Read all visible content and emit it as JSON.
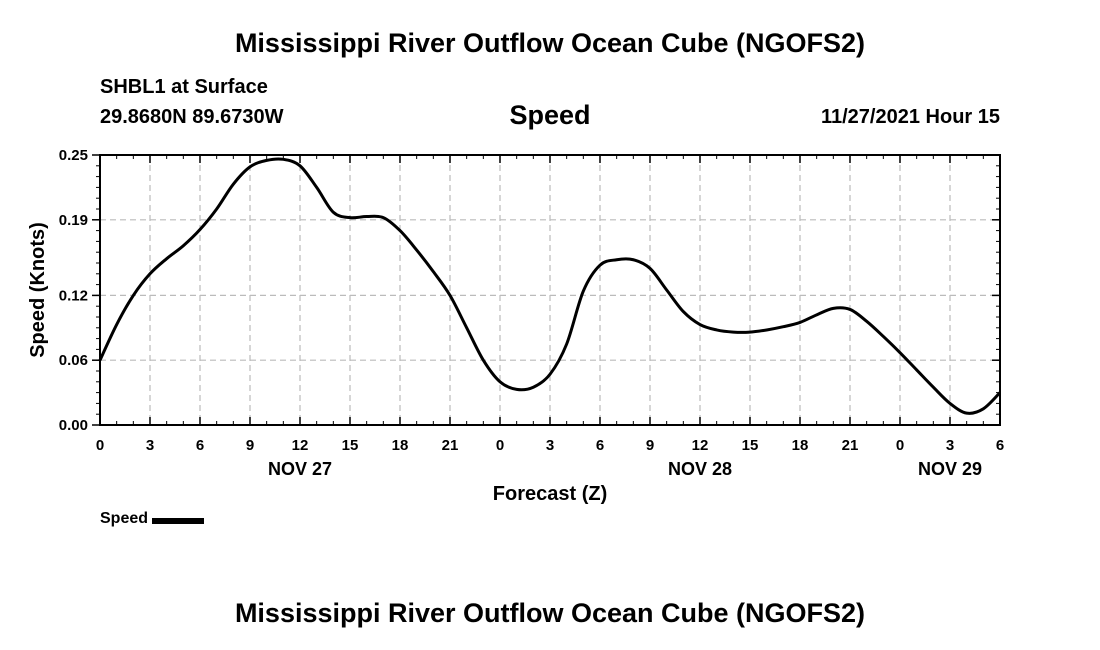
{
  "header": {
    "title": "Mississippi River Outflow Ocean Cube (NGOFS2)",
    "station": "SHBL1 at Surface",
    "coords": "29.8680N  89.6730W",
    "chart_title": "Speed",
    "valid_time": "11/27/2021 Hour 15"
  },
  "footer": {
    "title": "Mississippi River Outflow Ocean Cube (NGOFS2)"
  },
  "legend": {
    "label": "Speed"
  },
  "colors": {
    "line": "#000000",
    "grid": "#bbbbbb"
  },
  "chart_data": {
    "type": "line",
    "title": "Speed",
    "xlabel": "Forecast (Z)",
    "ylabel": "Speed (Knots)",
    "xlim": [
      0,
      54
    ],
    "ylim": [
      0,
      0.25
    ],
    "yticks": [
      0.0,
      0.06,
      0.12,
      0.19,
      0.25
    ],
    "ytick_labels": [
      "0.00",
      "0.06",
      "0.12",
      "0.19",
      "0.25"
    ],
    "xticks": [
      0,
      3,
      6,
      9,
      12,
      15,
      18,
      21,
      24,
      27,
      30,
      33,
      36,
      39,
      42,
      45,
      48,
      51,
      54
    ],
    "xtick_labels": [
      "0",
      "3",
      "6",
      "9",
      "12",
      "15",
      "18",
      "21",
      "0",
      "3",
      "6",
      "9",
      "12",
      "15",
      "18",
      "21",
      "0",
      "3",
      "6"
    ],
    "date_labels": [
      {
        "x": 12,
        "label": "NOV 27"
      },
      {
        "x": 36,
        "label": "NOV 28"
      },
      {
        "x": 51,
        "label": "NOV 29"
      }
    ],
    "grid": true,
    "legend_position": "bottom-left",
    "series": [
      {
        "name": "Speed",
        "x": [
          0,
          1,
          2,
          3,
          4,
          5,
          6,
          7,
          8,
          9,
          10,
          11,
          12,
          13,
          14,
          15,
          16,
          17,
          18,
          19,
          20,
          21,
          22,
          23,
          24,
          25,
          26,
          27,
          28,
          29,
          30,
          31,
          32,
          33,
          34,
          35,
          36,
          37,
          38,
          39,
          40,
          41,
          42,
          43,
          44,
          45,
          46,
          47,
          48,
          49,
          50,
          51,
          52,
          53,
          54
        ],
        "y": [
          0.06,
          0.093,
          0.12,
          0.14,
          0.154,
          0.166,
          0.181,
          0.2,
          0.223,
          0.239,
          0.245,
          0.246,
          0.24,
          0.22,
          0.197,
          0.192,
          0.193,
          0.192,
          0.18,
          0.162,
          0.142,
          0.12,
          0.09,
          0.06,
          0.04,
          0.033,
          0.035,
          0.047,
          0.075,
          0.124,
          0.148,
          0.153,
          0.153,
          0.145,
          0.125,
          0.105,
          0.093,
          0.088,
          0.086,
          0.086,
          0.088,
          0.091,
          0.095,
          0.102,
          0.108,
          0.107,
          0.096,
          0.082,
          0.067,
          0.051,
          0.035,
          0.02,
          0.011,
          0.015,
          0.03
        ]
      }
    ]
  }
}
